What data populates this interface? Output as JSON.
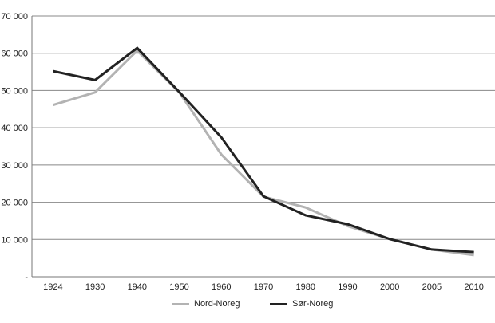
{
  "chart_data": {
    "type": "line",
    "title": "",
    "xlabel": "",
    "ylabel": "",
    "categories": [
      "1924",
      "1930",
      "1940",
      "1950",
      "1960",
      "1970",
      "1980",
      "1990",
      "2000",
      "2005",
      "2010"
    ],
    "series": [
      {
        "name": "Nord-Noreg",
        "color": "#b3b3b3",
        "values": [
          46100,
          49500,
          60700,
          49500,
          32800,
          21500,
          18600,
          13600,
          10100,
          7300,
          5800
        ]
      },
      {
        "name": "Sør-Noreg",
        "color": "#222222",
        "values": [
          55200,
          52800,
          61400,
          49600,
          37400,
          21600,
          16500,
          14100,
          10100,
          7300,
          6600
        ]
      }
    ],
    "ylim": [
      0,
      70000
    ],
    "yticks": [
      0,
      10000,
      20000,
      30000,
      40000,
      50000,
      60000,
      70000
    ],
    "ytick_labels": [
      "-",
      "10 000",
      "20 000",
      "30 000",
      "40 000",
      "50 000",
      "60 000",
      "70 000"
    ],
    "grid": true,
    "legend_position": "bottom"
  },
  "legend": {
    "items": [
      {
        "label": "Nord-Noreg",
        "color": "#b3b3b3"
      },
      {
        "label": "Sør-Noreg",
        "color": "#222222"
      }
    ]
  }
}
